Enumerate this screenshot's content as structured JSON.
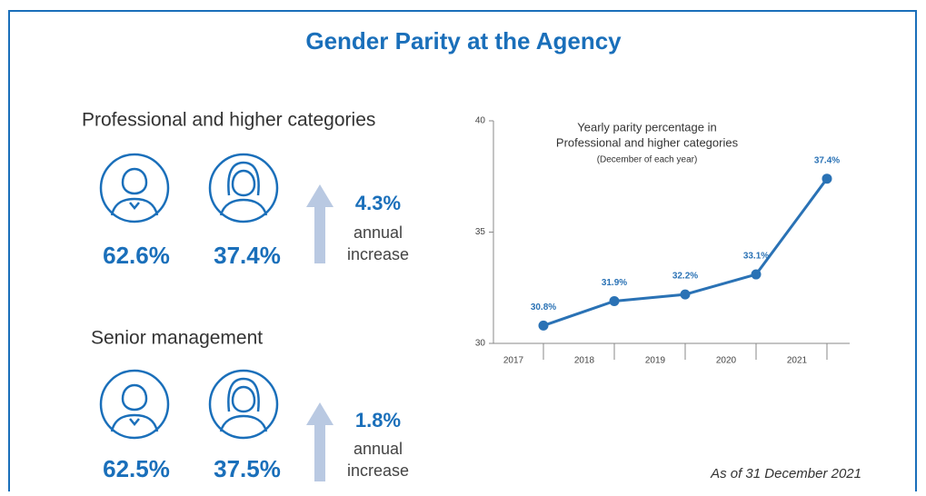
{
  "title": "Gender Parity at the Agency",
  "groups": [
    {
      "heading": "Professional and higher categories",
      "men": "62.6%",
      "women": "37.4%",
      "increase": "4.3%",
      "increase_label": [
        "annual",
        "increase"
      ]
    },
    {
      "heading": "Senior management",
      "men": "62.5%",
      "women": "37.5%",
      "increase": "1.8%",
      "increase_label": [
        "annual",
        "increase"
      ]
    }
  ],
  "chart_data": {
    "type": "line",
    "title": [
      "Yearly parity percentage in",
      "Professional and higher categories"
    ],
    "subtitle": "(December of each year)",
    "categories": [
      "2017",
      "2018",
      "2019",
      "2020",
      "2021"
    ],
    "values": [
      30.8,
      31.9,
      32.2,
      33.1,
      37.4
    ],
    "value_labels": [
      "30.8%",
      "31.9%",
      "32.2%",
      "33.1%",
      "37.4%"
    ],
    "color": "#2a72b5",
    "ylim": [
      30,
      40
    ],
    "yticks": [
      30,
      35,
      40
    ]
  },
  "footnote": "As of 31 December 2021"
}
